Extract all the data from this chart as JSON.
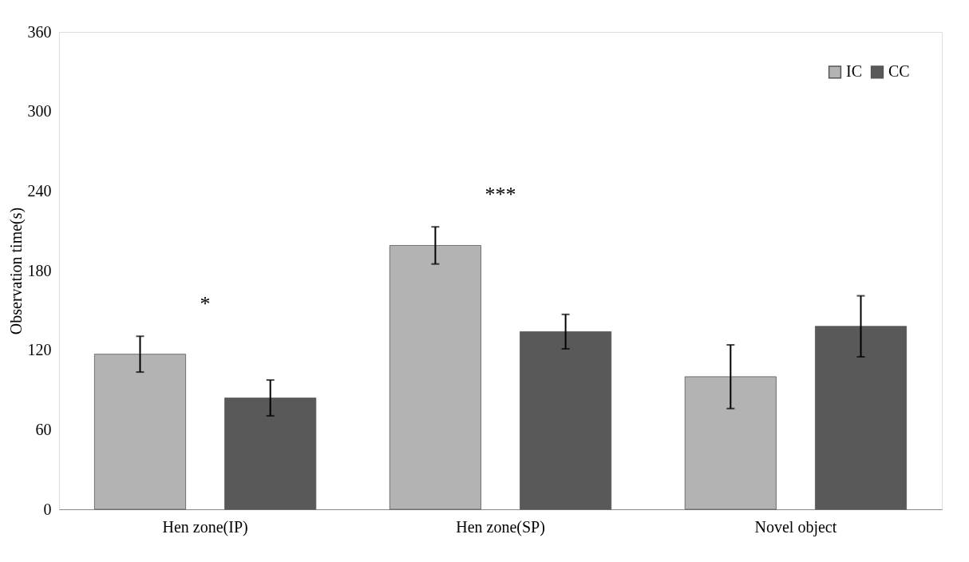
{
  "chart_data": {
    "type": "bar",
    "ylabel": "Observation time(s)",
    "categories": [
      "Hen zone(IP)",
      "Hen zone(SP)",
      "Novel object"
    ],
    "series": [
      {
        "name": "IC",
        "color": "#b3b3b3",
        "values": [
          117,
          199,
          100
        ],
        "errors": [
          13.5,
          14,
          24
        ]
      },
      {
        "name": "CC",
        "color": "#595959",
        "values": [
          84,
          134,
          138
        ],
        "errors": [
          13.5,
          13,
          23
        ]
      }
    ],
    "ylim": [
      0,
      360
    ],
    "yticks": [
      0,
      60,
      120,
      180,
      240,
      300,
      360
    ],
    "grid": false,
    "legend": "top right",
    "annotations": [
      "*",
      "***"
    ]
  }
}
